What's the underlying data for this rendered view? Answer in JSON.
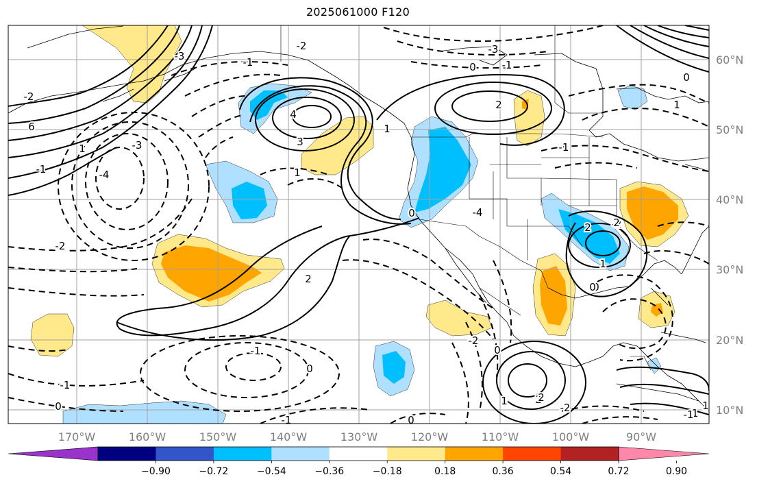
{
  "title": "2025061000 F120",
  "longitude_labels": [
    "170°W",
    "160°W",
    "150°W",
    "140°W",
    "130°W",
    "120°W",
    "110°W",
    "100°W",
    "90°W"
  ],
  "latitude_labels": [
    "60°N",
    "50°N",
    "40°N",
    "30°N",
    "20°N",
    "10°N"
  ],
  "colorbar": {
    "colors": [
      "#9933cc",
      "#000080",
      "#3355cc",
      "#00bfff",
      "#b0e0ff",
      "#ffffff",
      "#ffe98a",
      "#ffa500",
      "#ff4500",
      "#b22222",
      "#ff88aa"
    ],
    "tick_labels": [
      "−0.90",
      "−0.72",
      "−0.54",
      "−0.36",
      "−0.18",
      "0.18",
      "0.36",
      "0.54",
      "0.72",
      "0.90"
    ]
  },
  "colors": {
    "light_blue": "#b0e0ff",
    "deep_sky_blue": "#00bfff",
    "light_yellow": "#ffe98a",
    "orange": "#ffa500",
    "gridline": "#a0a0a0",
    "contour": "#000000"
  },
  "contour_labels": [
    "-3",
    "-2",
    "-1",
    "0",
    "1",
    "2",
    "3",
    "4",
    "6",
    "-4",
    "-2",
    "-1",
    "0",
    "1",
    "2",
    "-2",
    "-1",
    "0",
    "1",
    "-1",
    "0",
    "-2",
    "-3",
    "-4",
    "-2",
    "2",
    "1",
    "0",
    "-1",
    "-2",
    "0",
    "1",
    "2",
    "1",
    "2",
    "-1",
    "0",
    "1",
    "-3",
    "-2",
    "-1",
    "0",
    "-1",
    "2",
    "1",
    "0",
    "-1",
    "0"
  ]
}
